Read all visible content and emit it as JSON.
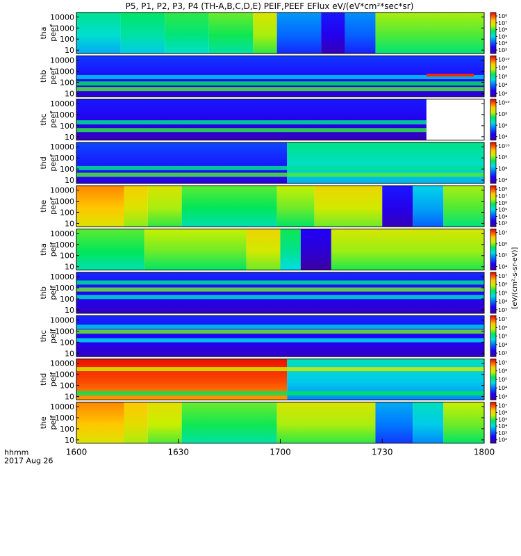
{
  "title": "P5, P1, P2, P3, P4 (TH-A,B,C,D,E) PEIF,PEEF EFlux eV/(eV*cm²*sec*sr)",
  "time_axis": {
    "label": "hhmm",
    "date": "2017 Aug 26",
    "range": [
      0,
      120
    ],
    "ticks": [
      {
        "label": "1600",
        "minutes": 0
      },
      {
        "label": "1630",
        "minutes": 30
      },
      {
        "label": "1700",
        "minutes": 60
      },
      {
        "label": "1730",
        "minutes": 90
      },
      {
        "label": "1800",
        "minutes": 120
      }
    ]
  },
  "energy_ticks": [
    "10",
    "100",
    "1000",
    "10000"
  ],
  "colorbar_unit": "[eV/(cm²-s-sr-eV)]",
  "chart_data": {
    "type": "heatmap",
    "x_units": "minutes after 1600 UT",
    "y_scale": "log",
    "ylim_eV": [
      5,
      25000
    ],
    "panels": [
      {
        "probe": "tha",
        "product": "peef",
        "label1": "tha",
        "label2": "peef",
        "colorbar_exponents": [
          3,
          4,
          5,
          6,
          7,
          8
        ],
        "colorbar_ticks": [
          "10³",
          "10⁴",
          "10⁵",
          "10⁶",
          "10⁷",
          "10⁸"
        ],
        "segments": [
          {
            "from": 0,
            "to": 13,
            "level": 0.44
          },
          {
            "from": 13,
            "to": 26,
            "level": 0.48
          },
          {
            "from": 26,
            "to": 39,
            "level": 0.52
          },
          {
            "from": 39,
            "to": 52,
            "level": 0.56
          },
          {
            "from": 52,
            "to": 59,
            "level": 0.66
          },
          {
            "from": 59,
            "to": 72,
            "level": 0.28
          },
          {
            "from": 72,
            "to": 79,
            "level": 0.12
          },
          {
            "from": 79,
            "to": 88,
            "level": 0.27
          },
          {
            "from": 88,
            "to": 120,
            "level": 0.6
          }
        ]
      },
      {
        "probe": "thb",
        "product": "peef",
        "label1": "thb",
        "label2": "peef",
        "colorbar_exponents": [
          2,
          4,
          6,
          8,
          10
        ],
        "colorbar_ticks": [
          "10²",
          "10⁴",
          "10⁶",
          "10⁸",
          "10¹⁰"
        ],
        "segments": [
          {
            "from": 0,
            "to": 120,
            "level": 0.16
          }
        ],
        "bands": [
          {
            "at": 300,
            "level": 0.4
          },
          {
            "at": 80,
            "level": 0.55
          },
          {
            "at": 25,
            "level": 0.6
          }
        ],
        "highlight": {
          "from": 103,
          "to": 117,
          "energy": 450,
          "level": 0.95
        }
      },
      {
        "probe": "thc",
        "product": "peef",
        "label1": "thc",
        "label2": "peef",
        "colorbar_exponents": [
          4,
          6,
          8,
          10
        ],
        "colorbar_ticks": [
          "10⁴",
          "10⁶",
          "10⁸",
          "10¹⁰"
        ],
        "segments": [
          {
            "from": 0,
            "to": 103,
            "level": 0.12
          }
        ],
        "bands": [
          {
            "at": 200,
            "level": 0.5
          },
          {
            "at": 40,
            "level": 0.58
          }
        ],
        "blank_after": 103
      },
      {
        "probe": "thd",
        "product": "peef",
        "label1": "thd",
        "label2": "peef",
        "colorbar_exponents": [
          4,
          6,
          8,
          10
        ],
        "colorbar_ticks": [
          "10⁴",
          "10⁶",
          "10⁸",
          "10¹⁰"
        ],
        "segments": [
          {
            "from": 0,
            "to": 62,
            "level": 0.18
          },
          {
            "from": 62,
            "to": 120,
            "level": 0.45
          }
        ],
        "bands": [
          {
            "at": 120,
            "level": 0.5
          },
          {
            "at": 30,
            "level": 0.6
          }
        ]
      },
      {
        "probe": "the",
        "product": "peef",
        "label1": "the",
        "label2": "peef",
        "colorbar_exponents": [
          3,
          4,
          5,
          6,
          7,
          8
        ],
        "colorbar_ticks": [
          "10³",
          "10⁴",
          "10⁵",
          "10⁶",
          "10⁷",
          "10⁸"
        ],
        "segments": [
          {
            "from": 0,
            "to": 14,
            "level": 0.8
          },
          {
            "from": 14,
            "to": 21,
            "level": 0.72
          },
          {
            "from": 21,
            "to": 31,
            "level": 0.66
          },
          {
            "from": 31,
            "to": 59,
            "level": 0.55
          },
          {
            "from": 59,
            "to": 70,
            "level": 0.62
          },
          {
            "from": 70,
            "to": 90,
            "level": 0.7
          },
          {
            "from": 90,
            "to": 99,
            "level": 0.12
          },
          {
            "from": 99,
            "to": 108,
            "level": 0.35
          },
          {
            "from": 108,
            "to": 120,
            "level": 0.6
          }
        ]
      },
      {
        "probe": "tha",
        "product": "peif",
        "label1": "tha",
        "label2": "peif",
        "colorbar_exponents": [
          4,
          5,
          6,
          7
        ],
        "colorbar_ticks": [
          "10⁴",
          "10⁵",
          "10⁶",
          "10⁷"
        ],
        "segments": [
          {
            "from": 0,
            "to": 20,
            "level": 0.55
          },
          {
            "from": 20,
            "to": 50,
            "level": 0.62
          },
          {
            "from": 50,
            "to": 60,
            "level": 0.7
          },
          {
            "from": 60,
            "to": 66,
            "level": 0.5
          },
          {
            "from": 66,
            "to": 75,
            "level": 0.08
          },
          {
            "from": 75,
            "to": 120,
            "level": 0.65
          }
        ]
      },
      {
        "probe": "thb",
        "product": "peif",
        "label1": "thb",
        "label2": "peif",
        "colorbar_exponents": [
          3,
          4,
          5,
          6,
          7
        ],
        "colorbar_ticks": [
          "10³",
          "10⁴",
          "10⁵",
          "10⁶",
          "10⁷"
        ],
        "segments": [
          {
            "from": 0,
            "to": 120,
            "level": 0.14
          }
        ],
        "bands": [
          {
            "at": 3000,
            "level": 0.5
          },
          {
            "at": 700,
            "level": 0.62
          },
          {
            "at": 150,
            "level": 0.45
          }
        ]
      },
      {
        "probe": "thc",
        "product": "peif",
        "label1": "thc",
        "label2": "peif",
        "colorbar_exponents": [
          3,
          4,
          5,
          6,
          7
        ],
        "colorbar_ticks": [
          "10³",
          "10⁴",
          "10⁵",
          "10⁶",
          "10⁷"
        ],
        "segments": [
          {
            "from": 0,
            "to": 120,
            "level": 0.14
          }
        ],
        "bands": [
          {
            "at": 900,
            "level": 0.62
          },
          {
            "at": 2500,
            "level": 0.4
          },
          {
            "at": 150,
            "level": 0.42
          }
        ]
      },
      {
        "probe": "thd",
        "product": "peif",
        "label1": "thd",
        "label2": "peif",
        "colorbar_exponents": [
          3,
          4,
          5,
          6,
          7
        ],
        "colorbar_ticks": [
          "10³",
          "10⁴",
          "10⁵",
          "10⁶",
          "10⁷"
        ],
        "segments": [
          {
            "from": 0,
            "to": 62,
            "level": 0.92
          },
          {
            "from": 62,
            "to": 120,
            "level": 0.4
          }
        ],
        "bands": [
          {
            "at": 3000,
            "level": 0.7
          },
          {
            "at": 20,
            "level": 0.55
          }
        ]
      },
      {
        "probe": "the",
        "product": "peif",
        "label1": "the",
        "label2": "peif",
        "colorbar_exponents": [
          2,
          3,
          4,
          5,
          6,
          7
        ],
        "colorbar_ticks": [
          "10²",
          "10³",
          "10⁴",
          "10⁵",
          "10⁶",
          "10⁷"
        ],
        "segments": [
          {
            "from": 0,
            "to": 14,
            "level": 0.8
          },
          {
            "from": 14,
            "to": 21,
            "level": 0.74
          },
          {
            "from": 21,
            "to": 31,
            "level": 0.68
          },
          {
            "from": 31,
            "to": 59,
            "level": 0.56
          },
          {
            "from": 59,
            "to": 88,
            "level": 0.66
          },
          {
            "from": 88,
            "to": 99,
            "level": 0.3
          },
          {
            "from": 99,
            "to": 108,
            "level": 0.4
          },
          {
            "from": 108,
            "to": 120,
            "level": 0.62
          }
        ]
      }
    ]
  }
}
